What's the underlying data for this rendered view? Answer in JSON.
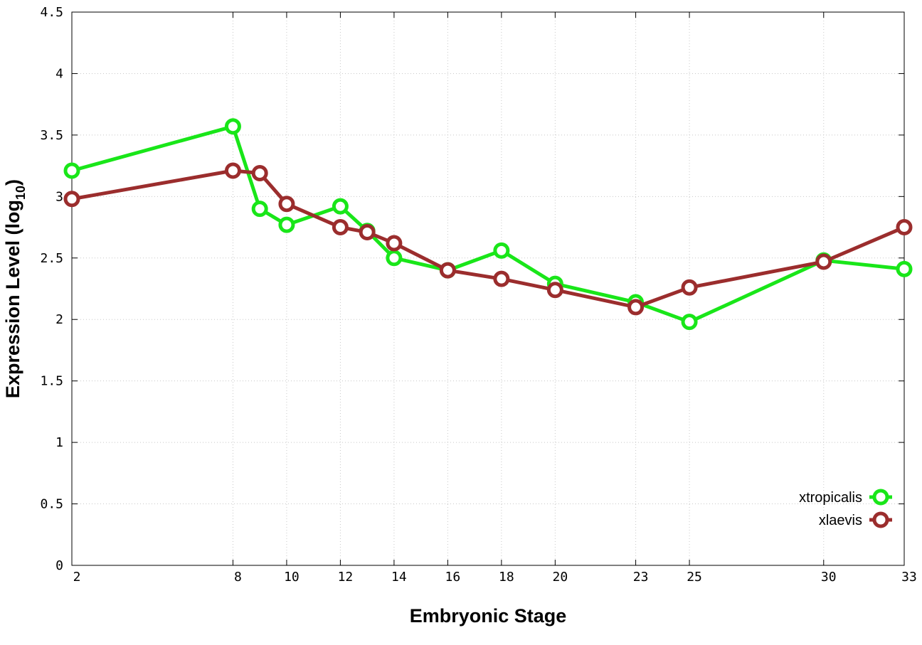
{
  "chart_data": {
    "type": "line",
    "xlabel": "Embryonic Stage",
    "ylabel": "Expression Level (log",
    "ylabel_subscript": "10",
    "ylabel_suffix": ")",
    "xlim": [
      2,
      33
    ],
    "ylim": [
      0,
      4.5
    ],
    "x_ticks": [
      2,
      8,
      10,
      12,
      14,
      16,
      18,
      20,
      23,
      25,
      30,
      33
    ],
    "y_ticks": [
      0,
      0.5,
      1,
      1.5,
      2,
      2.5,
      3,
      3.5,
      4,
      4.5
    ],
    "y_tick_labels": [
      "0",
      "0.5",
      "1",
      "1.5",
      "2",
      "2.5",
      "3",
      "3.5",
      "4",
      "4.5"
    ],
    "grid": true,
    "legend_position": "bottom-right",
    "series": [
      {
        "name": "xtropicalis",
        "color": "#19e619",
        "x": [
          2,
          8,
          9,
          10,
          12,
          13,
          14,
          16,
          18,
          20,
          23,
          25,
          30,
          33
        ],
        "y": [
          3.21,
          3.57,
          2.9,
          2.77,
          2.92,
          2.72,
          2.5,
          2.4,
          2.56,
          2.29,
          2.14,
          1.98,
          2.48,
          2.41
        ]
      },
      {
        "name": "xlaevis",
        "color": "#9b2d2d",
        "x": [
          2,
          8,
          9,
          10,
          12,
          13,
          14,
          16,
          18,
          20,
          23,
          25,
          30,
          33
        ],
        "y": [
          2.98,
          3.21,
          3.19,
          2.94,
          2.75,
          2.71,
          2.62,
          2.4,
          2.33,
          2.24,
          2.1,
          2.26,
          2.47,
          2.75
        ]
      }
    ]
  }
}
